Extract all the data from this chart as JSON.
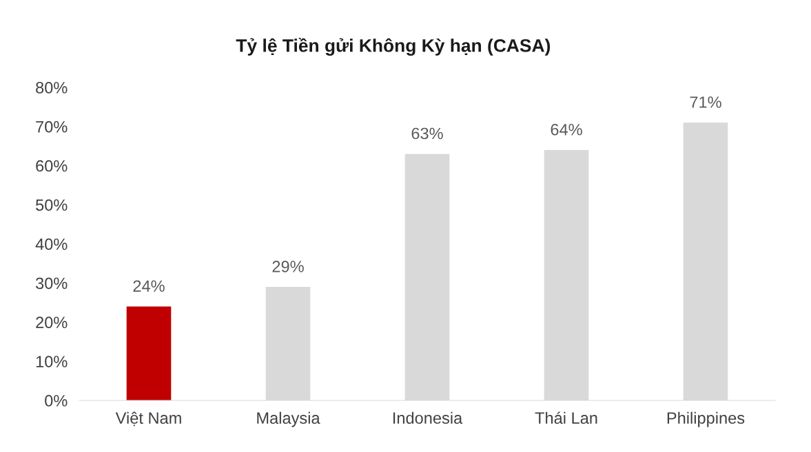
{
  "chart_data": {
    "type": "bar",
    "title": "Tỷ lệ Tiền gửi Không Kỳ hạn (CASA)",
    "categories": [
      "Việt Nam",
      "Malaysia",
      "Indonesia",
      "Thái Lan",
      "Philippines"
    ],
    "values": [
      24,
      29,
      63,
      64,
      71
    ],
    "colors": [
      "#c00000",
      "#d9d9d9",
      "#d9d9d9",
      "#d9d9d9",
      "#d9d9d9"
    ],
    "value_labels": [
      "24%",
      "29%",
      "63%",
      "64%",
      "71%"
    ],
    "ylim": [
      0,
      80
    ],
    "yticks": [
      {
        "value": 0,
        "label": "0%"
      },
      {
        "value": 10,
        "label": "10%"
      },
      {
        "value": 20,
        "label": "20%"
      },
      {
        "value": 30,
        "label": "30%"
      },
      {
        "value": 40,
        "label": "40%"
      },
      {
        "value": 50,
        "label": "50%"
      },
      {
        "value": 60,
        "label": "60%"
      },
      {
        "value": 70,
        "label": "70%"
      },
      {
        "value": 80,
        "label": "80%"
      }
    ],
    "grid": false,
    "legend": false
  }
}
